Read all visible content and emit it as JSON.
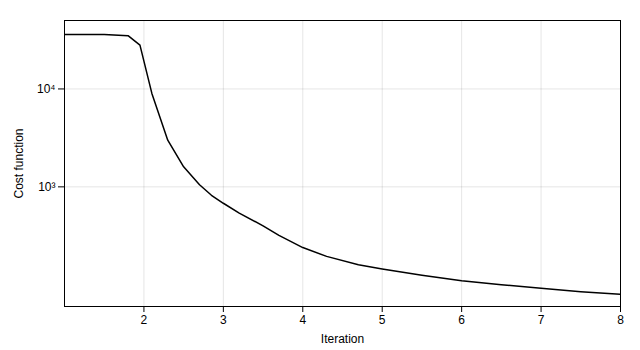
{
  "chart_data": {
    "type": "line",
    "x": [
      1.0,
      1.5,
      1.8,
      1.95,
      2.1,
      2.3,
      2.5,
      2.7,
      2.85,
      3.0,
      3.2,
      3.5,
      3.7,
      4.0,
      4.3,
      4.7,
      5.0,
      5.5,
      6.0,
      6.5,
      7.0,
      7.5,
      8.0
    ],
    "values": [
      36000,
      36000,
      35000,
      28000,
      9000,
      3000,
      1600,
      1050,
      820,
      680,
      540,
      400,
      320,
      240,
      195,
      160,
      145,
      125,
      110,
      100,
      92,
      85,
      80
    ],
    "xlabel": "Iteration",
    "ylabel": "Cost function",
    "xlim": [
      1,
      8
    ],
    "ylim": [
      60,
      50000
    ],
    "xticks": [
      2,
      3,
      4,
      5,
      6,
      7,
      8
    ],
    "yticks": [
      {
        "value": 1000,
        "label": "10³"
      },
      {
        "value": 10000,
        "label": "10⁴"
      }
    ],
    "log": "y",
    "grid": true,
    "color": "#000000"
  }
}
